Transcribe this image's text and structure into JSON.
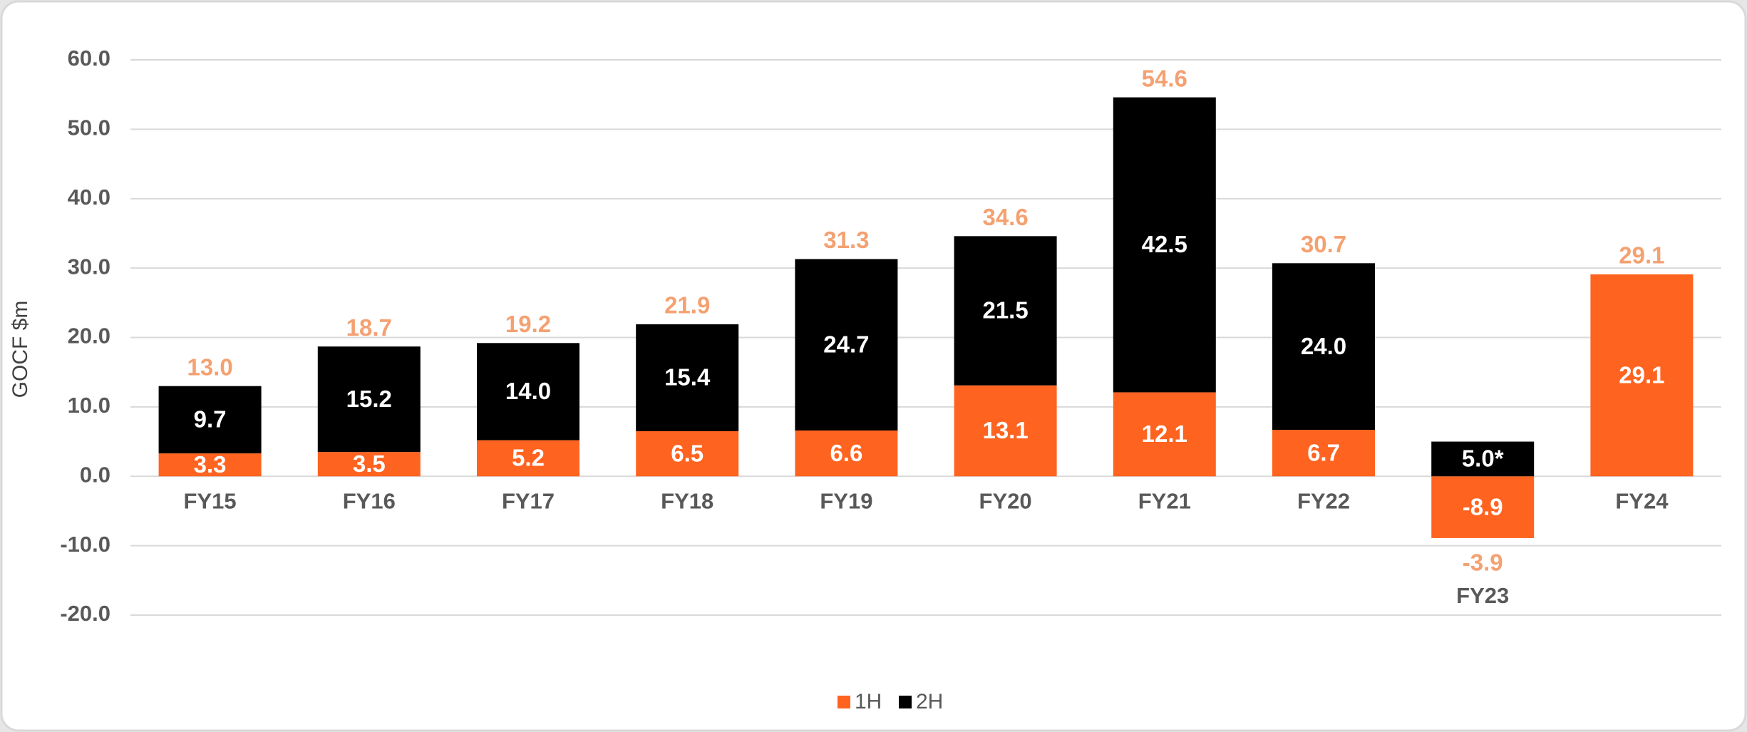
{
  "chart_data": {
    "type": "stacked_bar",
    "y_label": "GOCF $m",
    "categories": [
      "FY15",
      "FY16",
      "FY17",
      "FY18",
      "FY19",
      "FY20",
      "FY21",
      "FY22",
      "FY23",
      "FY24"
    ],
    "series": [
      {
        "name": "1H",
        "color": "#ff6320",
        "values": [
          3.3,
          3.5,
          5.2,
          6.5,
          6.6,
          13.1,
          12.1,
          6.7,
          -8.9,
          29.1
        ]
      },
      {
        "name": "2H",
        "color": "#000000",
        "values": [
          9.7,
          15.2,
          14,
          15.4,
          24.7,
          21.5,
          42.5,
          24,
          5,
          null
        ],
        "value_labels": [
          "9.7",
          "15.2",
          "14.0",
          "15.4",
          "24.7",
          "21.5",
          "42.5",
          "24.0",
          "5.0*",
          null
        ]
      }
    ],
    "totals": [
      13,
      18.7,
      19.2,
      21.9,
      31.3,
      34.6,
      54.6,
      30.7,
      -3.9,
      29.1
    ],
    "total_labels": [
      "13.0",
      "18.7",
      "19.2",
      "21.9",
      "31.3",
      "34.6",
      "54.6",
      "30.7",
      "-3.9",
      "29.1"
    ],
    "total_color": "#f4a172",
    "ylim": [
      -20,
      60
    ],
    "yticks": [
      {
        "value": -20,
        "label": "-20.0"
      },
      {
        "value": -10,
        "label": "-10.0"
      },
      {
        "value": 0,
        "label": "0.0"
      },
      {
        "value": 10,
        "label": "10.0"
      },
      {
        "value": 20,
        "label": "20.0"
      },
      {
        "value": 30,
        "label": "30.0"
      },
      {
        "value": 40,
        "label": "40.0"
      },
      {
        "value": 50,
        "label": "50.0"
      },
      {
        "value": 60,
        "label": "60.0"
      }
    ],
    "grid": true,
    "legend": "bottom"
  }
}
